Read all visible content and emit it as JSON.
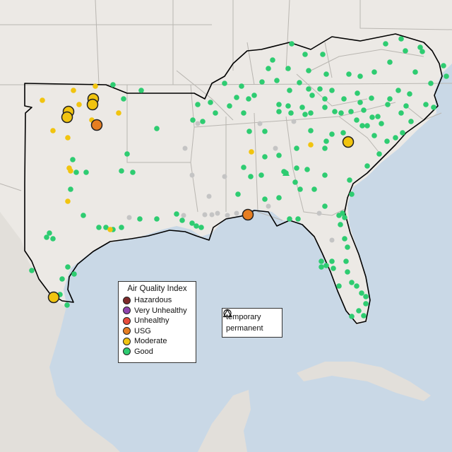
{
  "map": {
    "colors": {
      "water": "#c9d8e6",
      "land": "#ece9e5",
      "land_foreign": "#e0ddd8",
      "state_border": "#b9b6b1",
      "region_border": "#000000",
      "no_data": "#c4c4c4"
    },
    "aqi_legend": {
      "title": "Air Quality Index",
      "items": [
        {
          "label": "Hazardous",
          "color": "#7e2b2b"
        },
        {
          "label": "Very Unhealthy",
          "color": "#8e44ad"
        },
        {
          "label": "Unhealthy",
          "color": "#e74c3c"
        },
        {
          "label": "USG",
          "color": "#e67e22"
        },
        {
          "label": "Moderate",
          "color": "#f1c40f"
        },
        {
          "label": "Good",
          "color": "#2ecc71"
        }
      ]
    },
    "type_legend": {
      "items": [
        {
          "label": "temporary",
          "icon": "circle-icon"
        },
        {
          "label": "permanent",
          "icon": "triangle-icon"
        }
      ]
    },
    "monitors": {
      "usg": 2,
      "moderate_large": 7,
      "moderate_small": 14,
      "good": 200,
      "no_data": 18,
      "good_permanent": 1
    }
  }
}
